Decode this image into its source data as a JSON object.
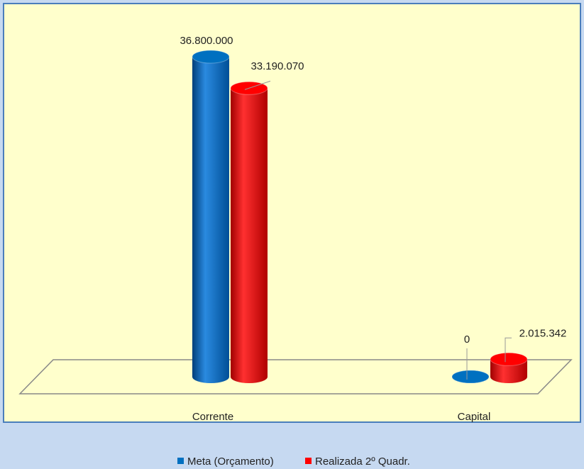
{
  "chart_data": {
    "type": "bar3d",
    "categories": [
      "Corrente",
      "Capital"
    ],
    "series": [
      {
        "name": "Meta (Orçamento)",
        "color": "#0070c0",
        "values": [
          36800000,
          0
        ],
        "value_labels": [
          "36.800.000",
          "0"
        ]
      },
      {
        "name": "Realizada 2º Quadr.",
        "color": "#ff0000",
        "values": [
          33190070,
          2015342
        ],
        "value_labels": [
          "33.190.070",
          "2.015.342"
        ]
      }
    ],
    "legend": "bottom"
  }
}
